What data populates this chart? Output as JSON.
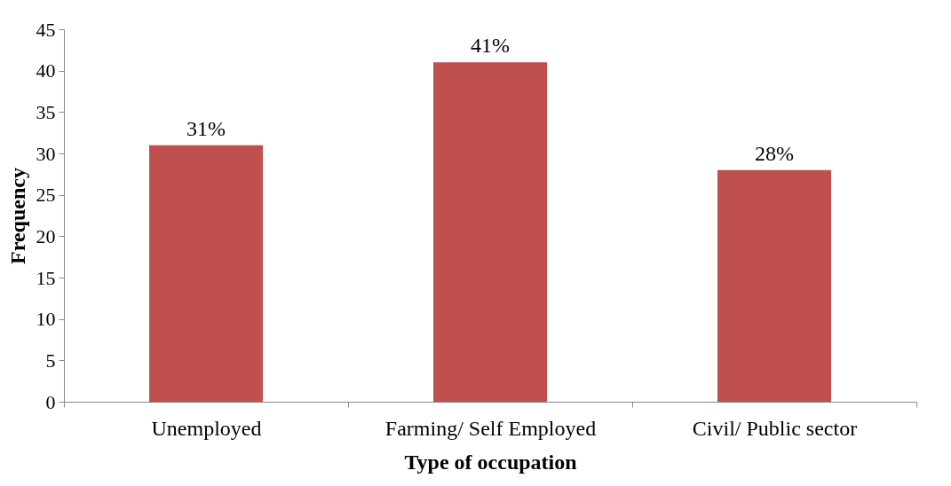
{
  "chart_data": {
    "type": "bar",
    "xlabel": "Type of occupation",
    "ylabel": "Frequency",
    "categories": [
      "Unemployed",
      "Farming/ Self Employed",
      "Civil/ Public sector"
    ],
    "values": [
      31,
      41,
      28
    ],
    "color": "#c0504d",
    "value_labels": [
      "31%",
      "41%",
      "28%"
    ],
    "ylim": [
      0,
      45
    ],
    "yticks": [
      0,
      5,
      10,
      15,
      20,
      25,
      30,
      35,
      40,
      45
    ],
    "grid": false
  }
}
